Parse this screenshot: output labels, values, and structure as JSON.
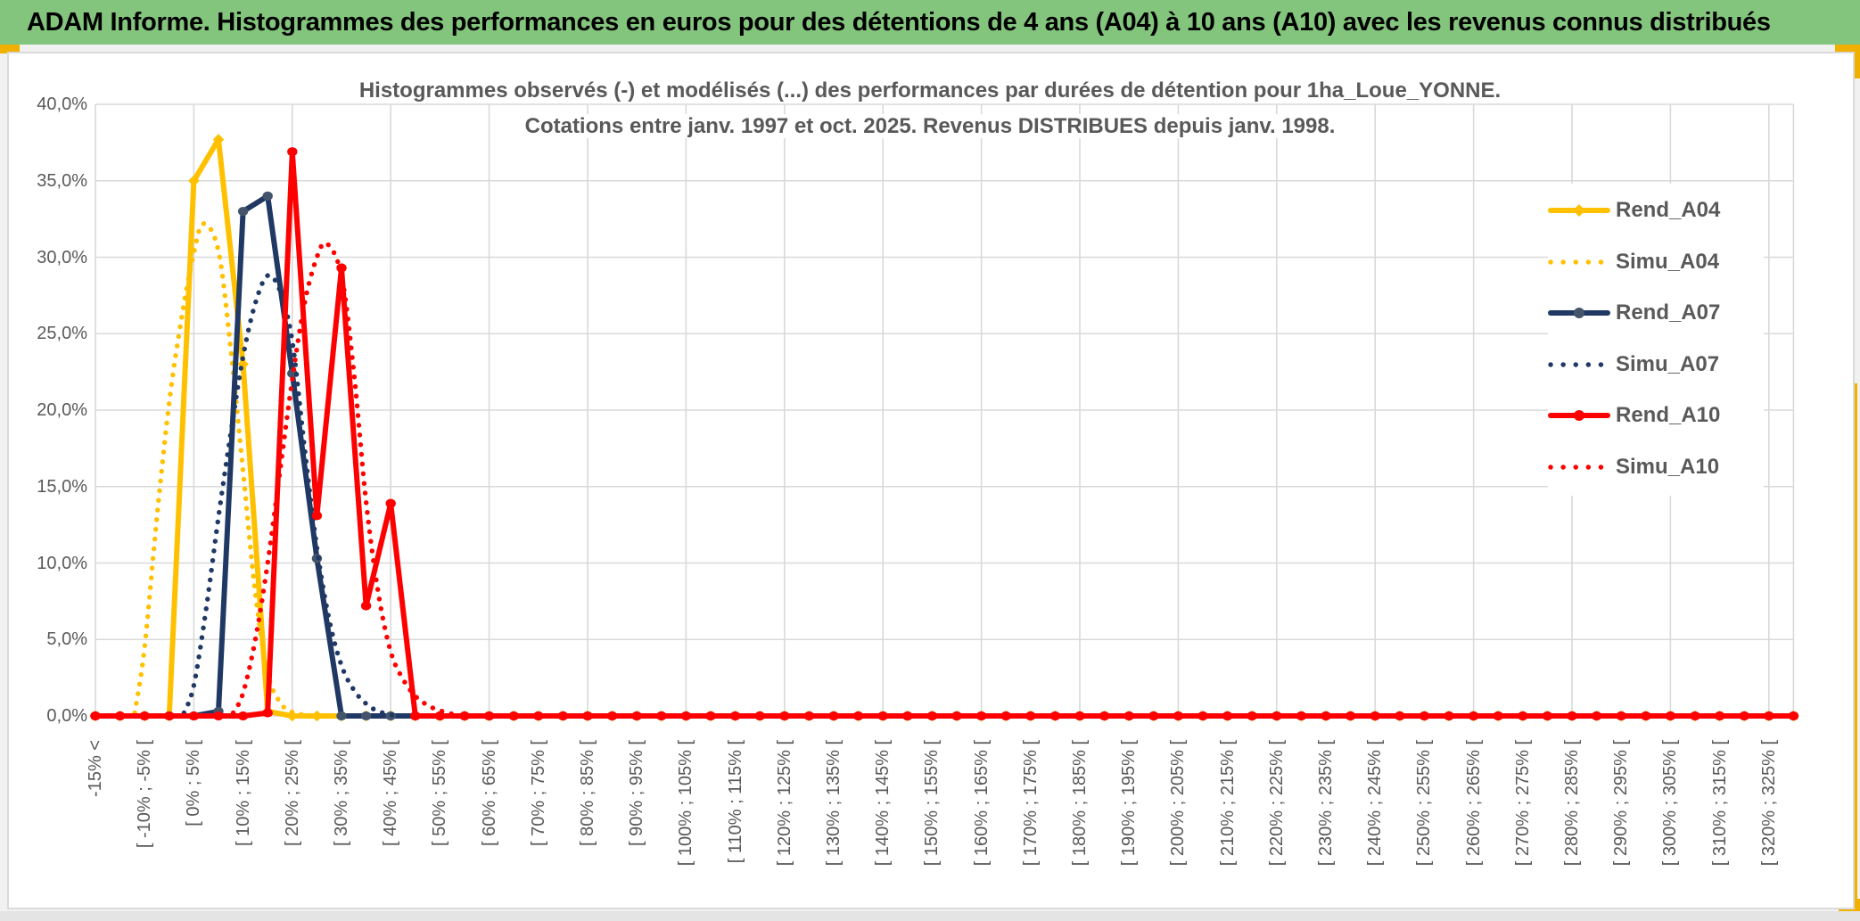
{
  "header": {
    "title": "ADAM Informe. Histogrammes des performances en euros pour des détentions de 4 ans (A04) à 10 ans (A10) avec les revenus connus distribués"
  },
  "colors": {
    "header_bg": "#83c57d",
    "accent_yellow": "#f0b000",
    "text_gray": "#595959",
    "grid": "#d9d9d9",
    "gold": "#FFC000",
    "navy": "#1F3864",
    "navy_marker": "#44546A",
    "red": "#FF0000"
  },
  "chart_data": {
    "type": "line",
    "title_line1": "Histogrammes observés (-) et modélisés (...) des performances par durées de détention pour 1ha_Loue_YONNE.",
    "title_line2": "Cotations entre janv. 1997 et oct. 2025. Revenus DISTRIBUES depuis janv. 1998.",
    "grid": true,
    "legend_position": "right-inside",
    "y_axis": {
      "min": 0,
      "max": 40,
      "step": 5,
      "tick_labels": [
        "40,0%",
        "35,0%",
        "30,0%",
        "25,0%",
        "20,0%",
        "15,0%",
        "10,0%",
        "5,0%",
        "0,0%"
      ]
    },
    "x_axis": {
      "n_categories": 70,
      "label_every": 2,
      "tick_labels": [
        "-15% <",
        "[ -10% ; -5% [",
        "[ 0% ; 5% [",
        "[ 10% ; 15% [",
        "[ 20% ; 25% [",
        "[ 30% ; 35% [",
        "[ 40% ; 45% [",
        "[ 50% ; 55% [",
        "[ 60% ; 65% [",
        "[ 70% ; 75% [",
        "[ 80% ; 85% [",
        "[ 90% ; 95% [",
        "[ 100% ; 105% [",
        "[ 110% ; 115% [",
        "[ 120% ; 125% [",
        "[ 130% ; 135% [",
        "[ 140% ; 145% [",
        "[ 150% ; 155% [",
        "[ 160% ; 165% [",
        "[ 170% ; 175% [",
        "[ 180% ; 185% [",
        "[ 190% ; 195% [",
        "[ 200% ; 205% [",
        "[ 210% ; 215% [",
        "[ 220% ; 225% [",
        "[ 230% ; 235% [",
        "[ 240% ; 245% [",
        "[ 250% ; 255% [",
        "[ 260% ; 265% [",
        "[ 270% ; 275% [",
        "[ 280% ; 285% [",
        "[ 290% ; 295% [",
        "[ 300% ; 305% [",
        "[ 310% ; 315% [",
        "[ 320% ; 325% ["
      ]
    },
    "series": [
      {
        "name": "Rend_A04",
        "style": "solid",
        "color": "#FFC000",
        "marker": "diamond",
        "marker_color": "#FFC000",
        "nonzero": {
          "4": 35.0,
          "5": 37.7,
          "6": 23.0,
          "7": 0.3
        }
      },
      {
        "name": "Simu_A04",
        "style": "dotted",
        "color": "#FFC000",
        "points": [
          [
            1.6,
            0.2
          ],
          [
            2,
            4.5
          ],
          [
            2.5,
            13
          ],
          [
            3,
            20.5
          ],
          [
            3.5,
            26
          ],
          [
            4,
            30.3
          ],
          [
            4.4,
            32.2
          ],
          [
            5,
            30.4
          ],
          [
            5.5,
            24
          ],
          [
            6,
            16
          ],
          [
            6.5,
            8
          ],
          [
            7,
            2.8
          ],
          [
            7.5,
            0.9
          ],
          [
            8,
            0.25
          ],
          [
            8.8,
            0
          ]
        ]
      },
      {
        "name": "Rend_A07",
        "style": "solid",
        "color": "#1F3864",
        "marker": "circle",
        "marker_color": "#44546A",
        "nonzero": {
          "5": 0.3,
          "6": 33.0,
          "7": 34.0,
          "8": 22.4,
          "9": 10.3
        }
      },
      {
        "name": "Simu_A07",
        "style": "dotted",
        "color": "#1F3864",
        "points": [
          [
            3.6,
            0.2
          ],
          [
            4,
            2
          ],
          [
            4.5,
            7
          ],
          [
            5,
            13
          ],
          [
            5.5,
            18.5
          ],
          [
            6,
            23.5
          ],
          [
            6.5,
            27
          ],
          [
            7,
            28.8
          ],
          [
            7.5,
            27.8
          ],
          [
            8,
            24.5
          ],
          [
            8.5,
            17.5
          ],
          [
            9,
            11
          ],
          [
            9.5,
            6.3
          ],
          [
            10,
            3.3
          ],
          [
            10.5,
            1.7
          ],
          [
            11,
            0.8
          ],
          [
            11.5,
            0.3
          ],
          [
            12.2,
            0
          ]
        ]
      },
      {
        "name": "Rend_A10",
        "style": "solid",
        "color": "#FF0000",
        "marker": "circle",
        "marker_color": "#FF0000",
        "nonzero": {
          "7": 0.2,
          "8": 36.9,
          "9": 13.1,
          "10": 29.3,
          "11": 7.2,
          "12": 13.9
        }
      },
      {
        "name": "Simu_A10",
        "style": "dotted",
        "color": "#FF0000",
        "points": [
          [
            5.6,
            0.2
          ],
          [
            6,
            1.5
          ],
          [
            6.5,
            5
          ],
          [
            7,
            10
          ],
          [
            7.5,
            16
          ],
          [
            8,
            22
          ],
          [
            8.5,
            27
          ],
          [
            9,
            30
          ],
          [
            9.4,
            30.9
          ],
          [
            10,
            28.8
          ],
          [
            10.5,
            22.5
          ],
          [
            11,
            14
          ],
          [
            11.5,
            8
          ],
          [
            12,
            4.2
          ],
          [
            12.5,
            2.4
          ],
          [
            13,
            1.3
          ],
          [
            13.5,
            0.7
          ],
          [
            14,
            0.35
          ],
          [
            14.8,
            0
          ]
        ]
      }
    ]
  }
}
